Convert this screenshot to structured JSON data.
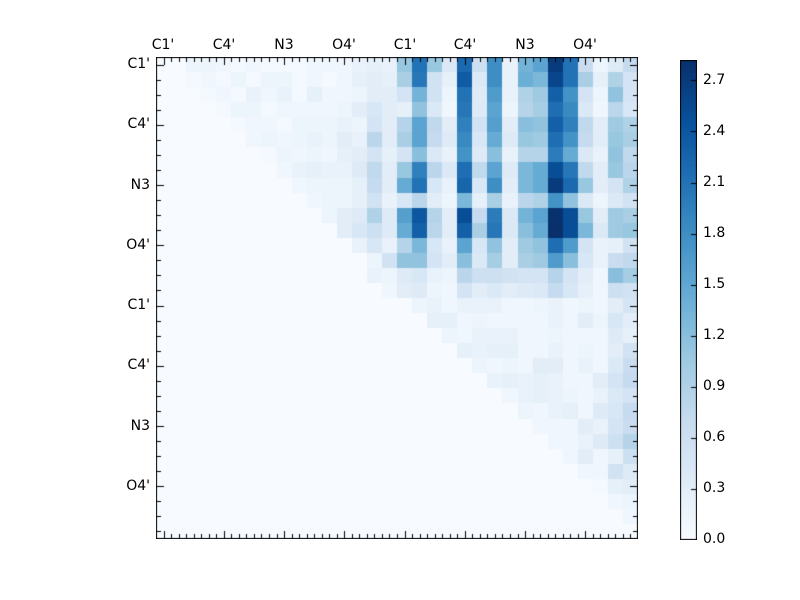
{
  "figure": {
    "background": "#ffffff",
    "plot_border_color": "#000000"
  },
  "chart_data": {
    "type": "heatmap",
    "title": "",
    "xlabel": "",
    "ylabel": "",
    "grid": false,
    "legend_position": "none",
    "n_rows": 32,
    "n_cols": 32,
    "top_axis_labels": [
      "C1'",
      "C4'",
      "N3",
      "O4'",
      "C1'",
      "C4'",
      "N3",
      "O4'"
    ],
    "left_axis_labels": [
      "C1'",
      "C4'",
      "N3",
      "O4'",
      "C1'",
      "C4'",
      "N3",
      "O4'"
    ],
    "colormap": "Blues",
    "colormap_rgb": [
      [
        247,
        251,
        255
      ],
      [
        222,
        235,
        247
      ],
      [
        198,
        219,
        239
      ],
      [
        158,
        202,
        225
      ],
      [
        107,
        174,
        214
      ],
      [
        66,
        146,
        198
      ],
      [
        33,
        113,
        181
      ],
      [
        8,
        81,
        156
      ],
      [
        8,
        48,
        107
      ]
    ],
    "vmin": 0.0,
    "vmax": 2.82,
    "colorbar": {
      "ticks": [
        "0.0",
        "0.3",
        "0.6",
        "0.9",
        "1.2",
        "1.5",
        "1.8",
        "2.1",
        "2.4",
        "2.7"
      ],
      "tick_values": [
        0.0,
        0.3,
        0.6,
        0.9,
        1.2,
        1.5,
        1.8,
        2.1,
        2.4,
        2.7
      ]
    },
    "matrix": [
      [
        0,
        0,
        0.15,
        0.15,
        0.1,
        0.05,
        0.1,
        0.05,
        0.05,
        0.05,
        0.1,
        0.1,
        0.1,
        0.2,
        0.25,
        0.2,
        1.1,
        2.1,
        1.1,
        0.4,
        2.2,
        0.6,
        1.8,
        0.2,
        1.35,
        1.55,
        2.7,
        2.1,
        0.65,
        0.15,
        0.35,
        0.7
      ],
      [
        0,
        0,
        0.05,
        0.1,
        0.05,
        0.15,
        0.05,
        0.15,
        0.15,
        0.05,
        0.1,
        0.05,
        0.1,
        0.25,
        0.3,
        0.25,
        0.95,
        2.05,
        0.55,
        0.25,
        2.35,
        0.4,
        1.8,
        0.2,
        1.4,
        1.3,
        2.6,
        2.1,
        0.95,
        0.25,
        0.9,
        0.5
      ],
      [
        0,
        0,
        0,
        0.05,
        0.1,
        0.05,
        0.2,
        0.1,
        0.2,
        0.05,
        0.25,
        0.1,
        0.1,
        0.15,
        0.3,
        0.3,
        0.5,
        1.35,
        0.55,
        0.15,
        2.1,
        0.35,
        1.65,
        0.2,
        0.9,
        1.05,
        2.3,
        1.75,
        0.5,
        0.15,
        1.15,
        0.5
      ],
      [
        0,
        0,
        0,
        0,
        0.05,
        0.15,
        0.15,
        0.05,
        0.1,
        0.1,
        0.1,
        0.1,
        0.15,
        0.3,
        0.45,
        0.3,
        0.25,
        1.15,
        0.4,
        0.1,
        2.05,
        0.35,
        1.55,
        0.15,
        0.85,
        1.0,
        2.15,
        1.85,
        0.4,
        0.1,
        0.8,
        0.45
      ],
      [
        0,
        0,
        0,
        0,
        0,
        0.05,
        0.1,
        0.1,
        0.05,
        0.15,
        0.15,
        0.15,
        0.2,
        0.15,
        0.5,
        0.3,
        0.85,
        1.55,
        0.75,
        0.3,
        1.95,
        0.55,
        1.6,
        0.3,
        1.2,
        1.15,
        2.3,
        1.95,
        0.75,
        0.3,
        1.05,
        0.9
      ],
      [
        0,
        0,
        0,
        0,
        0,
        0,
        0.1,
        0.15,
        0.1,
        0.15,
        0.2,
        0.15,
        0.3,
        0.2,
        0.8,
        0.3,
        0.95,
        1.55,
        0.7,
        0.35,
        1.85,
        0.45,
        1.45,
        0.35,
        1.1,
        1.05,
        2.15,
        1.75,
        0.7,
        0.3,
        1.1,
        0.95
      ],
      [
        0,
        0,
        0,
        0,
        0,
        0,
        0,
        0.05,
        0.15,
        0.1,
        0.15,
        0.1,
        0.25,
        0.3,
        0.5,
        0.25,
        0.5,
        1.2,
        0.4,
        0.2,
        1.75,
        0.35,
        1.2,
        0.2,
        0.85,
        0.85,
        2.0,
        1.45,
        0.4,
        0.2,
        1.15,
        0.75
      ],
      [
        0,
        0,
        0,
        0,
        0,
        0,
        0,
        0,
        0.1,
        0.2,
        0.25,
        0.2,
        0.2,
        0.35,
        0.75,
        0.3,
        1.1,
        1.95,
        0.8,
        0.4,
        2.15,
        0.75,
        1.55,
        0.35,
        1.3,
        1.45,
        2.5,
        2.05,
        0.75,
        0.3,
        1.1,
        0.8
      ],
      [
        0,
        0,
        0,
        0,
        0,
        0,
        0,
        0,
        0,
        0.1,
        0.15,
        0.15,
        0.15,
        0.25,
        0.7,
        0.3,
        1.45,
        2.1,
        0.45,
        0.2,
        2.25,
        0.45,
        1.8,
        0.3,
        1.3,
        1.45,
        2.7,
        2.2,
        1.1,
        0.3,
        0.5,
        0.9
      ],
      [
        0,
        0,
        0,
        0,
        0,
        0,
        0,
        0,
        0,
        0,
        0.1,
        0.15,
        0.15,
        0.25,
        0.55,
        0.2,
        0.45,
        0.8,
        0.3,
        0.15,
        1.3,
        0.25,
        0.95,
        0.2,
        0.8,
        0.9,
        1.75,
        1.15,
        0.4,
        0.15,
        0.4,
        0.55
      ],
      [
        0,
        0,
        0,
        0,
        0,
        0,
        0,
        0,
        0,
        0,
        0,
        0.15,
        0.3,
        0.35,
        0.9,
        0.35,
        1.6,
        2.4,
        0.85,
        0.3,
        2.5,
        0.7,
        2.0,
        0.4,
        1.35,
        1.55,
        2.8,
        2.5,
        1.1,
        0.3,
        1.05,
        0.95
      ],
      [
        0,
        0,
        0,
        0,
        0,
        0,
        0,
        0,
        0,
        0,
        0,
        0,
        0.3,
        0.45,
        0.6,
        0.35,
        1.45,
        2.3,
        0.8,
        0.3,
        2.3,
        0.95,
        2.05,
        0.4,
        1.2,
        1.45,
        2.82,
        2.5,
        1.3,
        0.4,
        1.05,
        1.1
      ],
      [
        0,
        0,
        0,
        0,
        0,
        0,
        0,
        0,
        0,
        0,
        0,
        0,
        0,
        0.2,
        0.45,
        0.2,
        0.85,
        1.3,
        0.45,
        0.2,
        1.55,
        0.45,
        1.15,
        0.3,
        1.05,
        1.15,
        2.15,
        1.65,
        0.5,
        0.2,
        0.25,
        0.55
      ],
      [
        0,
        0,
        0,
        0,
        0,
        0,
        0,
        0,
        0,
        0,
        0,
        0,
        0,
        0,
        0.15,
        0.55,
        1.15,
        1.15,
        0.5,
        0.3,
        1.2,
        0.4,
        1.0,
        0.3,
        0.95,
        1.05,
        1.65,
        1.2,
        0.45,
        0.2,
        0.65,
        0.75
      ],
      [
        0,
        0,
        0,
        0,
        0,
        0,
        0,
        0,
        0,
        0,
        0,
        0,
        0,
        0,
        0.2,
        0.15,
        0.35,
        0.45,
        0.2,
        0.15,
        0.8,
        0.6,
        0.6,
        0.55,
        0.5,
        0.5,
        0.85,
        0.5,
        0.3,
        0.1,
        1.2,
        1.0
      ],
      [
        0,
        0,
        0,
        0,
        0,
        0,
        0,
        0,
        0,
        0,
        0,
        0,
        0,
        0,
        0,
        0.1,
        0.3,
        0.35,
        0.15,
        0.1,
        0.5,
        0.3,
        0.4,
        0.3,
        0.35,
        0.4,
        0.7,
        0.45,
        0.25,
        0.1,
        0.6,
        0.55
      ],
      [
        0,
        0,
        0,
        0,
        0,
        0,
        0,
        0,
        0,
        0,
        0,
        0,
        0,
        0,
        0,
        0,
        0,
        0.15,
        0.2,
        0.1,
        0.2,
        0.2,
        0.2,
        0.1,
        0.1,
        0.15,
        0.2,
        0.1,
        0.15,
        0.1,
        0.3,
        0.5
      ],
      [
        0,
        0,
        0,
        0,
        0,
        0,
        0,
        0,
        0,
        0,
        0,
        0,
        0,
        0,
        0,
        0,
        0,
        0,
        0.25,
        0.25,
        0.1,
        0.15,
        0.1,
        0.1,
        0.1,
        0.1,
        0.2,
        0.1,
        0.3,
        0.15,
        0.45,
        0.3
      ],
      [
        0,
        0,
        0,
        0,
        0,
        0,
        0,
        0,
        0,
        0,
        0,
        0,
        0,
        0,
        0,
        0,
        0,
        0,
        0,
        0.15,
        0.1,
        0.2,
        0.2,
        0.2,
        0.1,
        0.1,
        0.15,
        0.1,
        0.1,
        0.1,
        0.35,
        0.25
      ],
      [
        0,
        0,
        0,
        0,
        0,
        0,
        0,
        0,
        0,
        0,
        0,
        0,
        0,
        0,
        0,
        0,
        0,
        0,
        0,
        0,
        0.25,
        0.2,
        0.25,
        0.25,
        0.1,
        0.1,
        0.2,
        0.1,
        0.15,
        0.1,
        0.3,
        0.55
      ],
      [
        0,
        0,
        0,
        0,
        0,
        0,
        0,
        0,
        0,
        0,
        0,
        0,
        0,
        0,
        0,
        0,
        0,
        0,
        0,
        0,
        0,
        0.15,
        0.1,
        0.15,
        0.1,
        0.3,
        0.3,
        0.1,
        0.2,
        0.1,
        0.4,
        0.65
      ],
      [
        0,
        0,
        0,
        0,
        0,
        0,
        0,
        0,
        0,
        0,
        0,
        0,
        0,
        0,
        0,
        0,
        0,
        0,
        0,
        0,
        0,
        0,
        0.2,
        0.25,
        0.2,
        0.25,
        0.2,
        0.1,
        0.1,
        0.3,
        0.5,
        0.7
      ],
      [
        0,
        0,
        0,
        0,
        0,
        0,
        0,
        0,
        0,
        0,
        0,
        0,
        0,
        0,
        0,
        0,
        0,
        0,
        0,
        0,
        0,
        0,
        0,
        0.1,
        0.2,
        0.25,
        0.2,
        0.15,
        0.1,
        0.2,
        0.4,
        0.5
      ],
      [
        0,
        0,
        0,
        0,
        0,
        0,
        0,
        0,
        0,
        0,
        0,
        0,
        0,
        0,
        0,
        0,
        0,
        0,
        0,
        0,
        0,
        0,
        0,
        0,
        0.15,
        0.1,
        0.2,
        0.25,
        0.1,
        0.35,
        0.45,
        0.7
      ],
      [
        0,
        0,
        0,
        0,
        0,
        0,
        0,
        0,
        0,
        0,
        0,
        0,
        0,
        0,
        0,
        0,
        0,
        0,
        0,
        0,
        0,
        0,
        0,
        0,
        0,
        0.1,
        0.1,
        0.1,
        0.3,
        0.2,
        0.5,
        0.65
      ],
      [
        0,
        0,
        0,
        0,
        0,
        0,
        0,
        0,
        0,
        0,
        0,
        0,
        0,
        0,
        0,
        0,
        0,
        0,
        0,
        0,
        0,
        0,
        0,
        0,
        0,
        0,
        0.1,
        0.1,
        0.2,
        0.35,
        0.6,
        0.85
      ],
      [
        0,
        0,
        0,
        0,
        0,
        0,
        0,
        0,
        0,
        0,
        0,
        0,
        0,
        0,
        0,
        0,
        0,
        0,
        0,
        0,
        0,
        0,
        0,
        0,
        0,
        0,
        0,
        0.1,
        0.3,
        0.1,
        0.25,
        0.6
      ],
      [
        0,
        0,
        0,
        0,
        0,
        0,
        0,
        0,
        0,
        0,
        0,
        0,
        0,
        0,
        0,
        0,
        0,
        0,
        0,
        0,
        0,
        0,
        0,
        0,
        0,
        0,
        0,
        0,
        0.1,
        0.1,
        0.55,
        0.35
      ],
      [
        0,
        0,
        0,
        0,
        0,
        0,
        0,
        0,
        0,
        0,
        0,
        0,
        0,
        0,
        0,
        0,
        0,
        0,
        0,
        0,
        0,
        0,
        0,
        0,
        0,
        0,
        0,
        0,
        0,
        0.05,
        0.25,
        0.3
      ],
      [
        0,
        0,
        0,
        0,
        0,
        0,
        0,
        0,
        0,
        0,
        0,
        0,
        0,
        0,
        0,
        0,
        0,
        0,
        0,
        0,
        0,
        0,
        0,
        0,
        0,
        0,
        0,
        0,
        0,
        0,
        0.1,
        0.15
      ],
      [
        0,
        0,
        0,
        0,
        0,
        0,
        0,
        0,
        0,
        0,
        0,
        0,
        0,
        0,
        0,
        0,
        0,
        0,
        0,
        0,
        0,
        0,
        0,
        0,
        0,
        0,
        0,
        0,
        0,
        0,
        0,
        0.1
      ],
      [
        0,
        0,
        0,
        0,
        0,
        0,
        0,
        0,
        0,
        0,
        0,
        0,
        0,
        0,
        0,
        0,
        0,
        0,
        0,
        0,
        0,
        0,
        0,
        0,
        0,
        0,
        0,
        0,
        0,
        0,
        0,
        0
      ]
    ]
  }
}
